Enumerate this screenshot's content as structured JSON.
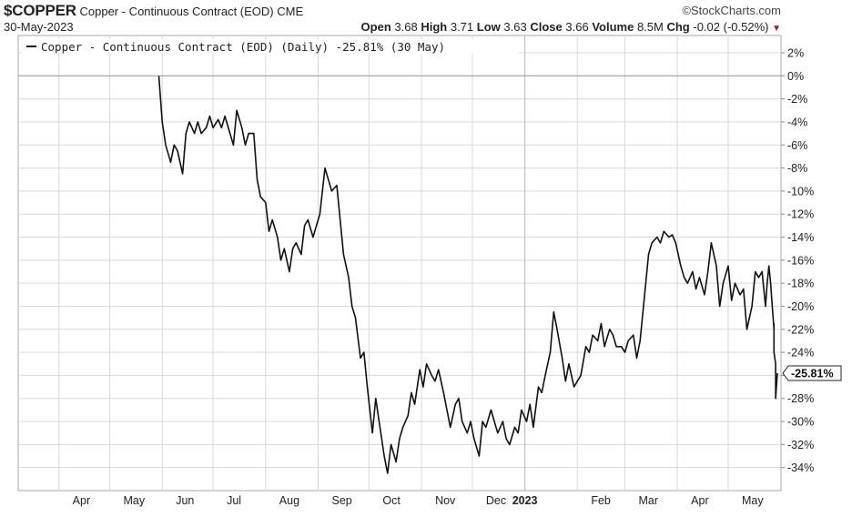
{
  "header": {
    "symbol": "$COPPER",
    "name": "Copper - Continuous Contract (EOD)",
    "exchange": "CME",
    "date": "30-May-2023",
    "brand": "©StockCharts.com",
    "open_label": "Open",
    "open": "3.68",
    "high_label": "High",
    "high": "3.71",
    "low_label": "Low",
    "low": "3.63",
    "close_label": "Close",
    "close": "3.66",
    "volume_label": "Volume",
    "volume": "8.5M",
    "chg_label": "Chg",
    "chg": "-0.02 (-0.52%)",
    "down_color": "#b0103a"
  },
  "chart_data": {
    "type": "line",
    "title": "$COPPER",
    "legend": "Copper - Continuous Contract (EOD) (Daily) -25.81% (30 May)",
    "legend_position": "top-left",
    "ylim": [
      -36,
      2
    ],
    "yticks": [
      2,
      0,
      -2,
      -4,
      -6,
      -8,
      -10,
      -12,
      -14,
      -16,
      -18,
      -20,
      -22,
      -24,
      -26,
      -28,
      -30,
      -32,
      -34
    ],
    "ytick_suffix": "%",
    "x_range": [
      "2022-05-30",
      "2023-05-30"
    ],
    "month_ticks": [
      {
        "label": "Apr",
        "date": "2022-04-01"
      },
      {
        "label": "May",
        "date": "2022-05-01"
      },
      {
        "label": "Jun",
        "date": "2022-06-01"
      },
      {
        "label": "Jul",
        "date": "2022-07-01"
      },
      {
        "label": "Aug",
        "date": "2022-08-01"
      },
      {
        "label": "Sep",
        "date": "2022-09-01"
      },
      {
        "label": "Oct",
        "date": "2022-10-01"
      },
      {
        "label": "Nov",
        "date": "2022-11-01"
      },
      {
        "label": "Dec",
        "date": "2022-12-01"
      },
      {
        "label": "2023",
        "date": "2023-01-01",
        "bold": true
      },
      {
        "label": "Feb",
        "date": "2023-02-01"
      },
      {
        "label": "Mar",
        "date": "2023-03-01"
      },
      {
        "label": "Apr",
        "date": "2023-04-01"
      },
      {
        "label": "May",
        "date": "2023-05-01"
      }
    ],
    "last_value_label": "-25.81%",
    "grid": true,
    "line_color": "#111111",
    "grid_color": "#d9d9d9",
    "series": [
      {
        "values": [
          [
            "2022-05-30",
            0.0
          ],
          [
            "2022-06-01",
            -4.0
          ],
          [
            "2022-06-03",
            -6.0
          ],
          [
            "2022-06-06",
            -7.5
          ],
          [
            "2022-06-08",
            -6.0
          ],
          [
            "2022-06-10",
            -6.5
          ],
          [
            "2022-06-13",
            -8.5
          ],
          [
            "2022-06-15",
            -5.0
          ],
          [
            "2022-06-17",
            -4.0
          ],
          [
            "2022-06-20",
            -5.0
          ],
          [
            "2022-06-22",
            -4.0
          ],
          [
            "2022-06-24",
            -5.0
          ],
          [
            "2022-06-27",
            -4.5
          ],
          [
            "2022-06-29",
            -3.5
          ],
          [
            "2022-07-01",
            -4.5
          ],
          [
            "2022-07-04",
            -3.8
          ],
          [
            "2022-07-06",
            -4.5
          ],
          [
            "2022-07-08",
            -3.5
          ],
          [
            "2022-07-11",
            -5.0
          ],
          [
            "2022-07-13",
            -6.0
          ],
          [
            "2022-07-15",
            -3.0
          ],
          [
            "2022-07-18",
            -4.5
          ],
          [
            "2022-07-20",
            -6.0
          ],
          [
            "2022-07-22",
            -5.0
          ],
          [
            "2022-07-25",
            -5.0
          ],
          [
            "2022-07-27",
            -9.0
          ],
          [
            "2022-07-29",
            -10.5
          ],
          [
            "2022-08-01",
            -11.0
          ],
          [
            "2022-08-03",
            -13.5
          ],
          [
            "2022-08-05",
            -12.5
          ],
          [
            "2022-08-08",
            -14.0
          ],
          [
            "2022-08-10",
            -16.0
          ],
          [
            "2022-08-12",
            -15.0
          ],
          [
            "2022-08-15",
            -17.0
          ],
          [
            "2022-08-17",
            -15.0
          ],
          [
            "2022-08-19",
            -14.5
          ],
          [
            "2022-08-22",
            -15.5
          ],
          [
            "2022-08-24",
            -13.0
          ],
          [
            "2022-08-26",
            -12.5
          ],
          [
            "2022-08-29",
            -14.0
          ],
          [
            "2022-08-31",
            -13.0
          ],
          [
            "2022-09-02",
            -12.0
          ],
          [
            "2022-09-05",
            -8.0
          ],
          [
            "2022-09-07",
            -9.0
          ],
          [
            "2022-09-09",
            -10.0
          ],
          [
            "2022-09-12",
            -9.5
          ],
          [
            "2022-09-14",
            -12.5
          ],
          [
            "2022-09-16",
            -15.5
          ],
          [
            "2022-09-19",
            -17.5
          ],
          [
            "2022-09-21",
            -20.0
          ],
          [
            "2022-09-23",
            -21.0
          ],
          [
            "2022-09-26",
            -24.5
          ],
          [
            "2022-09-28",
            -24.0
          ],
          [
            "2022-09-30",
            -27.0
          ],
          [
            "2022-10-03",
            -31.0
          ],
          [
            "2022-10-05",
            -28.0
          ],
          [
            "2022-10-07",
            -30.0
          ],
          [
            "2022-10-10",
            -33.0
          ],
          [
            "2022-10-12",
            -34.5
          ],
          [
            "2022-10-14",
            -32.0
          ],
          [
            "2022-10-17",
            -33.5
          ],
          [
            "2022-10-19",
            -31.5
          ],
          [
            "2022-10-21",
            -30.5
          ],
          [
            "2022-10-24",
            -29.5
          ],
          [
            "2022-10-26",
            -27.5
          ],
          [
            "2022-10-28",
            -28.5
          ],
          [
            "2022-10-31",
            -25.5
          ],
          [
            "2022-11-02",
            -27.0
          ],
          [
            "2022-11-04",
            -25.0
          ],
          [
            "2022-11-07",
            -26.0
          ],
          [
            "2022-11-09",
            -26.5
          ],
          [
            "2022-11-11",
            -25.5
          ],
          [
            "2022-11-14",
            -27.5
          ],
          [
            "2022-11-16",
            -29.0
          ],
          [
            "2022-11-18",
            -30.5
          ],
          [
            "2022-11-21",
            -28.5
          ],
          [
            "2022-11-23",
            -28.0
          ],
          [
            "2022-11-25",
            -30.0
          ],
          [
            "2022-11-28",
            -31.0
          ],
          [
            "2022-11-30",
            -30.0
          ],
          [
            "2022-12-02",
            -31.5
          ],
          [
            "2022-12-05",
            -33.0
          ],
          [
            "2022-12-07",
            -30.0
          ],
          [
            "2022-12-09",
            -30.5
          ],
          [
            "2022-12-12",
            -29.0
          ],
          [
            "2022-12-14",
            -30.0
          ],
          [
            "2022-12-16",
            -31.0
          ],
          [
            "2022-12-19",
            -30.0
          ],
          [
            "2022-12-21",
            -31.5
          ],
          [
            "2022-12-23",
            -32.0
          ],
          [
            "2022-12-26",
            -30.5
          ],
          [
            "2022-12-28",
            -31.0
          ],
          [
            "2022-12-30",
            -29.0
          ],
          [
            "2023-01-02",
            -30.0
          ],
          [
            "2023-01-04",
            -28.5
          ],
          [
            "2023-01-06",
            -30.5
          ],
          [
            "2023-01-09",
            -27.0
          ],
          [
            "2023-01-11",
            -27.5
          ],
          [
            "2023-01-13",
            -26.0
          ],
          [
            "2023-01-16",
            -24.0
          ],
          [
            "2023-01-18",
            -20.5
          ],
          [
            "2023-01-20",
            -22.0
          ],
          [
            "2023-01-23",
            -24.5
          ],
          [
            "2023-01-25",
            -26.5
          ],
          [
            "2023-01-27",
            -25.0
          ],
          [
            "2023-01-30",
            -27.0
          ],
          [
            "2023-02-01",
            -26.5
          ],
          [
            "2023-02-03",
            -26.0
          ],
          [
            "2023-02-06",
            -23.5
          ],
          [
            "2023-02-08",
            -24.0
          ],
          [
            "2023-02-10",
            -22.5
          ],
          [
            "2023-02-13",
            -23.0
          ],
          [
            "2023-02-15",
            -21.5
          ],
          [
            "2023-02-17",
            -23.5
          ],
          [
            "2023-02-20",
            -22.0
          ],
          [
            "2023-02-22",
            -22.5
          ],
          [
            "2023-02-24",
            -23.5
          ],
          [
            "2023-02-27",
            -23.5
          ],
          [
            "2023-03-01",
            -24.0
          ],
          [
            "2023-03-03",
            -23.0
          ],
          [
            "2023-03-06",
            -22.5
          ],
          [
            "2023-03-08",
            -24.5
          ],
          [
            "2023-03-10",
            -23.0
          ],
          [
            "2023-03-13",
            -18.5
          ],
          [
            "2023-03-15",
            -15.5
          ],
          [
            "2023-03-17",
            -14.5
          ],
          [
            "2023-03-20",
            -14.0
          ],
          [
            "2023-03-22",
            -14.5
          ],
          [
            "2023-03-24",
            -13.5
          ],
          [
            "2023-03-27",
            -14.0
          ],
          [
            "2023-03-29",
            -13.8
          ],
          [
            "2023-03-31",
            -14.5
          ],
          [
            "2023-04-03",
            -16.5
          ],
          [
            "2023-04-05",
            -17.5
          ],
          [
            "2023-04-07",
            -18.0
          ],
          [
            "2023-04-10",
            -17.0
          ],
          [
            "2023-04-12",
            -18.5
          ],
          [
            "2023-04-14",
            -17.5
          ],
          [
            "2023-04-17",
            -19.0
          ],
          [
            "2023-04-19",
            -17.0
          ],
          [
            "2023-04-21",
            -14.5
          ],
          [
            "2023-04-24",
            -16.5
          ],
          [
            "2023-04-26",
            -20.0
          ],
          [
            "2023-04-28",
            -18.0
          ],
          [
            "2023-05-01",
            -16.5
          ],
          [
            "2023-05-03",
            -19.5
          ],
          [
            "2023-05-05",
            -18.0
          ],
          [
            "2023-05-08",
            -19.0
          ],
          [
            "2023-05-10",
            -18.5
          ],
          [
            "2023-05-12",
            -22.0
          ],
          [
            "2023-05-15",
            -20.0
          ],
          [
            "2023-05-17",
            -17.0
          ],
          [
            "2023-05-19",
            -17.5
          ],
          [
            "2023-05-21",
            -17.0
          ],
          [
            "2023-05-22",
            -18.5
          ],
          [
            "2023-05-23",
            -20.0
          ],
          [
            "2023-05-24",
            -18.0
          ],
          [
            "2023-05-25",
            -16.5
          ],
          [
            "2023-05-26",
            -18.0
          ],
          [
            "2023-05-27",
            -20.0
          ],
          [
            "2023-05-28",
            -22.0
          ],
          [
            "2023-05-28",
            -21.5
          ],
          [
            "2023-05-28",
            -24.0
          ],
          [
            "2023-05-29",
            -25.0
          ],
          [
            "2023-05-29",
            -26.5
          ],
          [
            "2023-05-29",
            -25.5
          ],
          [
            "2023-05-29",
            -28.0
          ],
          [
            "2023-05-30",
            -25.81
          ]
        ]
      }
    ]
  }
}
